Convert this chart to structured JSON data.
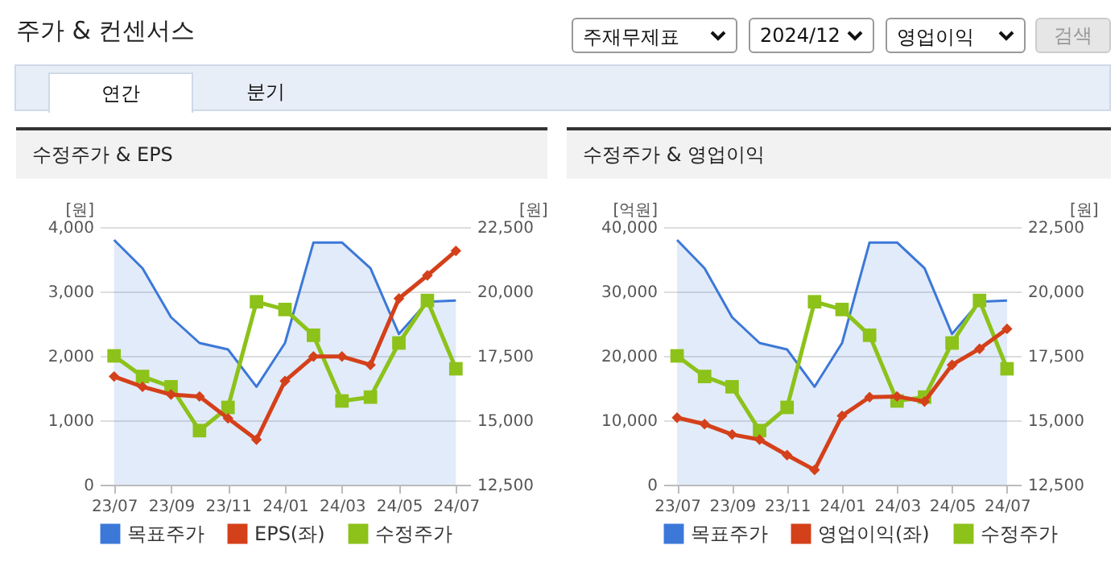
{
  "chart_data": [
    {
      "type": "other",
      "title": "주가 & 컨센서스",
      "annotations": [
        "주재무제표",
        "2024/12",
        "영업이익",
        "검색",
        "연간",
        "분기"
      ]
    },
    {
      "type": "line",
      "title": "수정주가 & EPS",
      "categories": [
        "23/07",
        null,
        "23/09",
        null,
        "23/11",
        null,
        "24/01",
        null,
        "24/03",
        null,
        "24/05",
        null,
        "24/07"
      ],
      "ylabel": "[원]",
      "y2label": "[원]",
      "ylim": [
        0,
        4000
      ],
      "yticks": [
        0,
        {
          "value": 1000,
          "label": "1,000"
        },
        {
          "value": 2000,
          "label": "2,000"
        },
        {
          "value": 3000,
          "label": "3,000"
        },
        {
          "value": 4000,
          "label": "4,000"
        }
      ],
      "y2lim": [
        12500,
        22500
      ],
      "y2ticks": [
        {
          "value": 12500,
          "label": "12,500"
        },
        {
          "value": 15000,
          "label": "15,000"
        },
        {
          "value": 17500,
          "label": "17,500"
        },
        {
          "value": 20000,
          "label": "20,000"
        },
        {
          "value": 22500,
          "label": "22,500"
        }
      ],
      "grid": "y",
      "legend": "bottom",
      "series": [
        {
          "name": "목표주가",
          "type": "area",
          "axis": "y2",
          "color": "#3c78d8",
          "marker": "none",
          "values": [
            22000,
            20900,
            19000,
            18000,
            17750,
            16300,
            18000,
            21900,
            21900,
            20900,
            18350,
            19600,
            19650
          ]
        },
        {
          "name": "EPS(좌)",
          "type": "line",
          "color": "#d4401a",
          "marker": "diamond",
          "values": [
            1680,
            1520,
            1400,
            1370,
            1030,
            700,
            1610,
            1990,
            1990,
            1860,
            2890,
            3250,
            3630
          ]
        },
        {
          "name": "수정주가",
          "type": "line",
          "axis": "y2",
          "color": "#8cc21a",
          "marker": "square",
          "values": [
            17500,
            16700,
            16300,
            14600,
            15500,
            19600,
            19300,
            18300,
            15750,
            15900,
            18000,
            19650,
            17000
          ]
        }
      ]
    },
    {
      "type": "line",
      "title": "수정주가 & 영업이익",
      "categories": [
        "23/07",
        null,
        "23/09",
        null,
        "23/11",
        null,
        "24/01",
        null,
        "24/03",
        null,
        "24/05",
        null,
        "24/07"
      ],
      "ylabel": "[억원]",
      "y2label": "[원]",
      "ylim": [
        0,
        40000
      ],
      "yticks": [
        0,
        {
          "value": 10000,
          "label": "10,000"
        },
        {
          "value": 20000,
          "label": "20,000"
        },
        {
          "value": 30000,
          "label": "30,000"
        },
        {
          "value": 40000,
          "label": "40,000"
        }
      ],
      "y2lim": [
        12500,
        22500
      ],
      "y2ticks": [
        {
          "value": 12500,
          "label": "12,500"
        },
        {
          "value": 15000,
          "label": "15,000"
        },
        {
          "value": 17500,
          "label": "17,500"
        },
        {
          "value": 20000,
          "label": "20,000"
        },
        {
          "value": 22500,
          "label": "22,500"
        }
      ],
      "grid": "y",
      "legend": "bottom",
      "series": [
        {
          "name": "목표주가",
          "type": "area",
          "axis": "y2",
          "color": "#3c78d8",
          "marker": "none",
          "values": [
            22000,
            20900,
            19000,
            18000,
            17750,
            16300,
            18000,
            21900,
            21900,
            20900,
            18350,
            19600,
            19650
          ]
        },
        {
          "name": "영업이익(좌)",
          "type": "line",
          "color": "#d4401a",
          "marker": "diamond",
          "values": [
            10400,
            9400,
            7800,
            7000,
            4600,
            2300,
            10700,
            13600,
            13700,
            12900,
            18600,
            21100,
            24200
          ]
        },
        {
          "name": "수정주가",
          "type": "line",
          "axis": "y2",
          "color": "#8cc21a",
          "marker": "square",
          "values": [
            17500,
            16700,
            16300,
            14600,
            15500,
            19600,
            19300,
            18300,
            15750,
            15900,
            18000,
            19650,
            17000
          ]
        }
      ]
    }
  ]
}
